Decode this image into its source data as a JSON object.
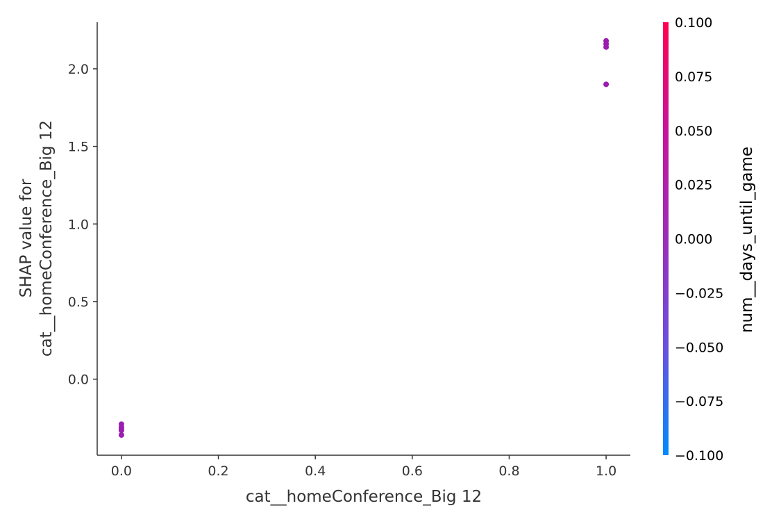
{
  "chart_data": {
    "type": "scatter",
    "xlabel": "cat__homeConference_Big 12",
    "ylabel": [
      "SHAP value for",
      "cat__homeConference_Big 12"
    ],
    "xlim": [
      -0.05,
      1.05
    ],
    "ylim": [
      -0.49,
      2.3
    ],
    "x_ticks": [
      {
        "value": 0.0,
        "label": "0.0"
      },
      {
        "value": 0.2,
        "label": "0.2"
      },
      {
        "value": 0.4,
        "label": "0.4"
      },
      {
        "value": 0.6,
        "label": "0.6"
      },
      {
        "value": 0.8,
        "label": "0.8"
      },
      {
        "value": 1.0,
        "label": "1.0"
      }
    ],
    "y_ticks": [
      {
        "value": 0.0,
        "label": "0.0"
      },
      {
        "value": 0.5,
        "label": "0.5"
      },
      {
        "value": 1.0,
        "label": "1.0"
      },
      {
        "value": 1.5,
        "label": "1.5"
      },
      {
        "value": 2.0,
        "label": "2.0"
      }
    ],
    "points": [
      {
        "x": 0.0,
        "y": -0.29
      },
      {
        "x": 0.0,
        "y": -0.31
      },
      {
        "x": 0.0,
        "y": -0.32
      },
      {
        "x": 0.0,
        "y": -0.33
      },
      {
        "x": 0.0,
        "y": -0.36
      },
      {
        "x": 1.0,
        "y": 2.18
      },
      {
        "x": 1.0,
        "y": 2.16
      },
      {
        "x": 1.0,
        "y": 2.14
      },
      {
        "x": 1.0,
        "y": 1.9
      }
    ],
    "point_color": "#9b1eb0",
    "colorbar": {
      "label": "num__days_until_game",
      "range": [
        -0.1,
        0.1
      ],
      "colors": [
        "#008bfb",
        "#6a4fe0",
        "#9b2db9",
        "#c7139c",
        "#ff0051"
      ],
      "ticks": [
        {
          "value": 0.1,
          "label": "0.100"
        },
        {
          "value": 0.075,
          "label": "0.075"
        },
        {
          "value": 0.05,
          "label": "0.050"
        },
        {
          "value": 0.025,
          "label": "0.025"
        },
        {
          "value": 0.0,
          "label": "0.000"
        },
        {
          "value": -0.025,
          "label": "−0.025"
        },
        {
          "value": -0.05,
          "label": "−0.050"
        },
        {
          "value": -0.075,
          "label": "−0.075"
        },
        {
          "value": -0.1,
          "label": "−0.100"
        }
      ]
    },
    "grid": false
  }
}
